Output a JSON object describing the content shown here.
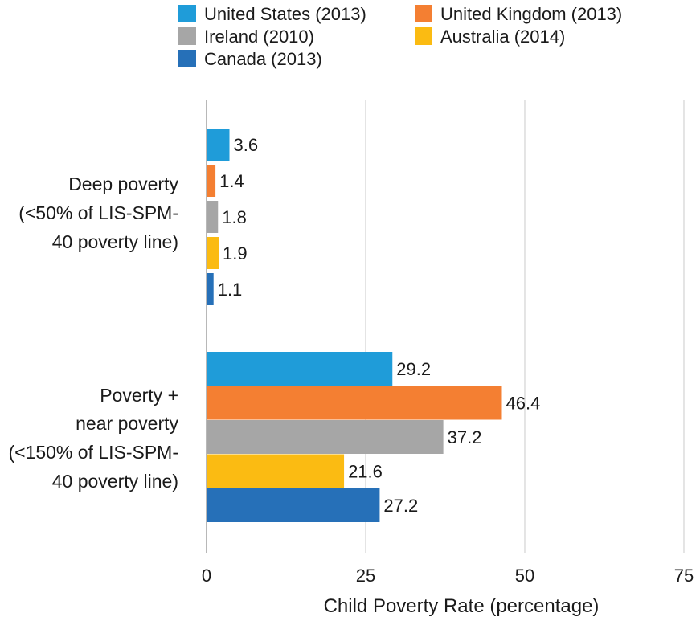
{
  "chart_data": {
    "type": "bar",
    "orientation": "horizontal",
    "categories": [
      [
        "Deep poverty",
        "(<50% of LIS-SPM-",
        "40 poverty line)"
      ],
      [
        "Poverty +",
        "near poverty",
        "(<150% of LIS-SPM-",
        "40 poverty line)"
      ]
    ],
    "series": [
      {
        "name": "United States (2013)",
        "color": "#1f9cd9",
        "values": [
          3.6,
          29.2
        ],
        "labels": [
          "3.6",
          "29.2"
        ]
      },
      {
        "name": "United Kingdom (2013)",
        "color": "#f47f32",
        "values": [
          1.4,
          46.4
        ],
        "labels": [
          "1.4",
          "46.4"
        ]
      },
      {
        "name": "Ireland (2010)",
        "color": "#a6a6a6",
        "values": [
          1.8,
          37.2
        ],
        "labels": [
          "1.8",
          "37.2"
        ]
      },
      {
        "name": "Australia (2014)",
        "color": "#fbbb12",
        "values": [
          1.9,
          21.6
        ],
        "labels": [
          "1.9",
          "21.6"
        ]
      },
      {
        "name": "Canada (2013)",
        "color": "#2670b8",
        "values": [
          1.1,
          27.2
        ],
        "labels": [
          "1.1",
          "27.2"
        ]
      }
    ],
    "legend_order": [
      [
        "United States (2013)",
        "United Kingdom (2013)"
      ],
      [
        "Ireland (2010)",
        "Australia (2014)"
      ],
      [
        "Canada (2013)"
      ]
    ],
    "xlim": [
      0,
      75
    ],
    "xticks": [
      0,
      25,
      50,
      75
    ],
    "xtick_labels": [
      "0",
      "25",
      "50",
      "75"
    ],
    "xlabel": "Child Poverty Rate (percentage)",
    "ylabel": "",
    "title": "",
    "grid": "vertical",
    "legend_position": "top"
  }
}
